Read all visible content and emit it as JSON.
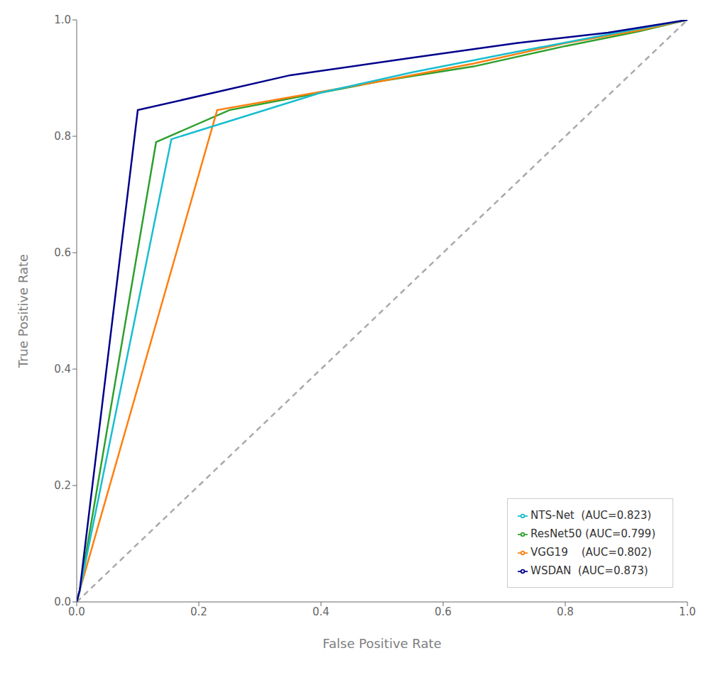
{
  "chart_data": {
    "type": "line",
    "xlabel": "False Positive Rate",
    "ylabel": "True Positive Rate",
    "xlim": [
      0.0,
      1.0
    ],
    "ylim": [
      0.0,
      1.0
    ],
    "xticks": [
      {
        "value": 0.0,
        "label": "0.0"
      },
      0.2,
      0.4,
      0.6,
      0.8,
      {
        "value": 1.0,
        "label": "1.0"
      }
    ],
    "yticks": [
      {
        "value": 0.0,
        "label": "0.0"
      },
      0.2,
      0.4,
      0.6,
      0.8,
      {
        "value": 1.0,
        "label": "1.0"
      }
    ],
    "grid": false,
    "legend": "lower right",
    "series": [
      {
        "color": "#aaaaaa",
        "line_style": "dashed",
        "x": [
          0,
          1
        ],
        "values": [
          0,
          1
        ]
      },
      {
        "name": "ResNet50 (AUC=0.799)",
        "color": "#2ca02c",
        "line_style": "solid",
        "x": [
          0.0,
          0.005,
          0.13,
          0.13,
          0.25,
          0.5,
          0.65,
          0.8,
          0.92,
          1.0
        ],
        "values": [
          0.0,
          0.02,
          0.79,
          0.79,
          0.845,
          0.895,
          0.92,
          0.955,
          0.98,
          1.0
        ]
      },
      {
        "name": "VGG19    (AUC=0.802)",
        "color": "#ff7f0e",
        "line_style": "solid",
        "x": [
          0.0,
          0.005,
          0.23,
          0.23,
          0.5,
          0.65,
          0.8,
          0.92,
          1.0
        ],
        "values": [
          0.0,
          0.02,
          0.845,
          0.845,
          0.895,
          0.925,
          0.96,
          0.982,
          1.0
        ]
      },
      {
        "name": "NTS-Net  (AUC=0.823)",
        "color": "#17becf",
        "line_style": "solid",
        "x": [
          0.0,
          0.005,
          0.155,
          0.155,
          0.4,
          0.55,
          0.72,
          0.87,
          1.0
        ],
        "values": [
          0.0,
          0.02,
          0.795,
          0.795,
          0.875,
          0.91,
          0.945,
          0.975,
          1.0
        ]
      },
      {
        "name": "WSDAN  (AUC=0.873)",
        "color": "#00008b",
        "line_style": "solid",
        "x": [
          0.0,
          0.005,
          0.1,
          0.1,
          0.35,
          0.55,
          0.72,
          0.87,
          1.0
        ],
        "values": [
          0.0,
          0.02,
          0.845,
          0.845,
          0.905,
          0.935,
          0.96,
          0.978,
          1.0
        ]
      }
    ]
  }
}
